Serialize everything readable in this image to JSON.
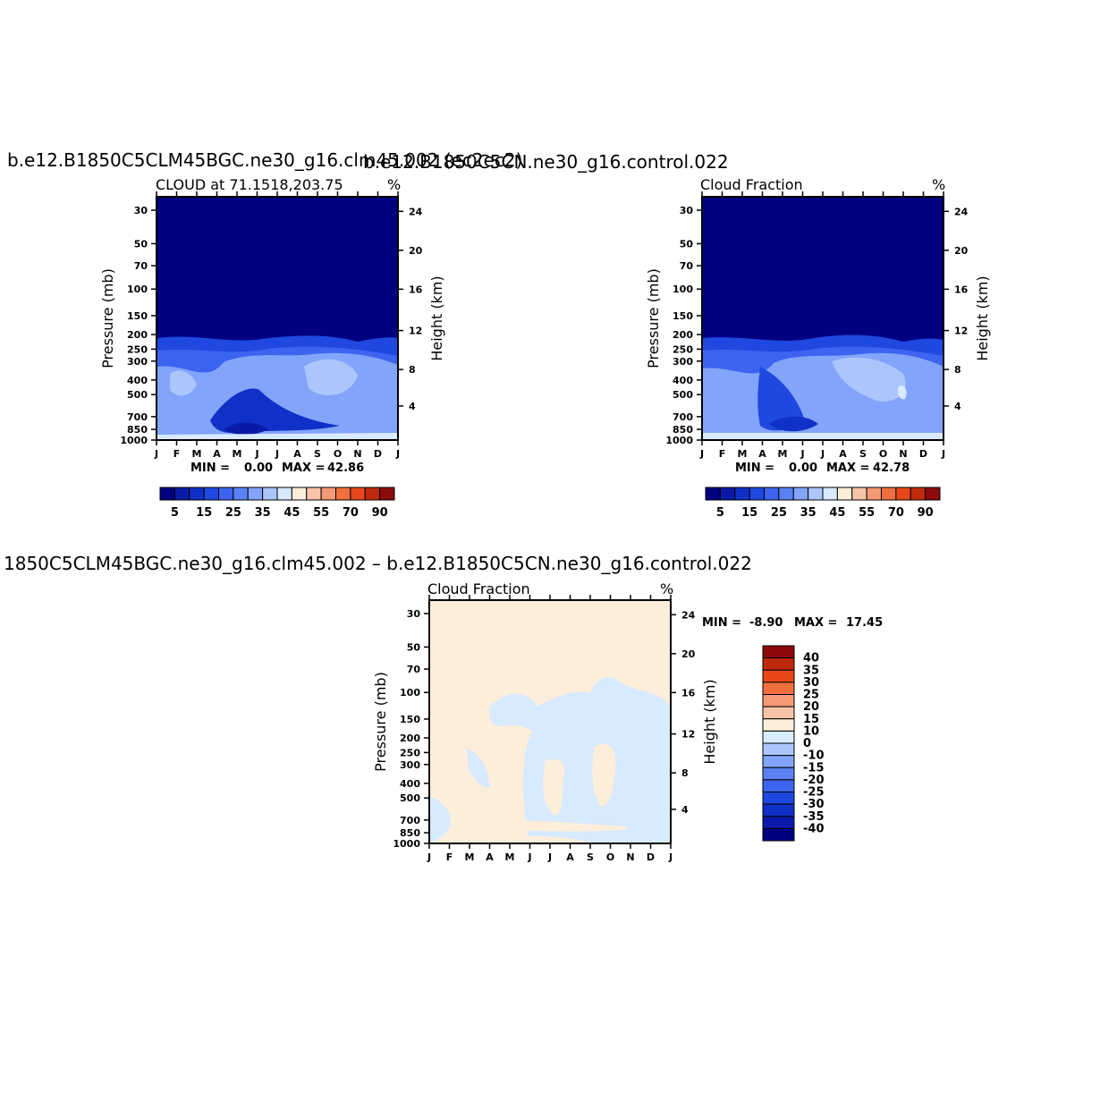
{
  "chart_data": [
    {
      "type": "heatmap",
      "title": "b.e12.B1850C5CLM45BGC.ne30_g16.clm45.002 (ec2ec2)",
      "subtitle": "CLOUD at 71.1518,203.75",
      "units": "%",
      "xlabel": "",
      "ylabel": "Pressure (mb)",
      "ylabel_right": "Height (km)",
      "x_ticks": [
        "J",
        "F",
        "M",
        "A",
        "M",
        "J",
        "J",
        "A",
        "S",
        "O",
        "N",
        "D",
        "J"
      ],
      "y_ticks": [
        "30",
        "50",
        "70",
        "100",
        "150",
        "200",
        "250",
        "300",
        "400",
        "500",
        "700",
        "850",
        "1000"
      ],
      "y_ticks_right": [
        "24",
        "20",
        "16",
        "12",
        "8",
        "4"
      ],
      "min_label": "MIN =",
      "min_value": "0.00",
      "max_label": "MAX =",
      "max_value": "42.86",
      "min": 0.0,
      "max": 42.86,
      "colorbar_labels": [
        "5",
        "15",
        "25",
        "35",
        "45",
        "55",
        "70",
        "90"
      ]
    },
    {
      "type": "heatmap",
      "title": "b.e12.B1850C5CN.ne30_g16.control.022",
      "subtitle": "Cloud Fraction",
      "units": "%",
      "xlabel": "",
      "ylabel": "Pressure (mb)",
      "ylabel_right": "Height (km)",
      "x_ticks": [
        "J",
        "F",
        "M",
        "A",
        "M",
        "J",
        "J",
        "A",
        "S",
        "O",
        "N",
        "D",
        "J"
      ],
      "y_ticks": [
        "30",
        "50",
        "70",
        "100",
        "150",
        "200",
        "250",
        "300",
        "400",
        "500",
        "700",
        "850",
        "1000"
      ],
      "y_ticks_right": [
        "24",
        "20",
        "16",
        "12",
        "8",
        "4"
      ],
      "min_label": "MIN =",
      "min_value": "0.00",
      "max_label": "MAX =",
      "max_value": "42.78",
      "min": 0.0,
      "max": 42.78,
      "colorbar_labels": [
        "5",
        "15",
        "25",
        "35",
        "45",
        "55",
        "70",
        "90"
      ]
    },
    {
      "type": "heatmap",
      "title": "1850C5CLM45BGC.ne30_g16.clm45.002 – b.e12.B1850C5CN.ne30_g16.control.022",
      "subtitle": "Cloud Fraction",
      "units": "%",
      "xlabel": "",
      "ylabel": "Pressure (mb)",
      "ylabel_right": "Height (km)",
      "x_ticks": [
        "J",
        "F",
        "M",
        "A",
        "M",
        "J",
        "J",
        "A",
        "S",
        "O",
        "N",
        "D",
        "J"
      ],
      "y_ticks": [
        "30",
        "50",
        "70",
        "100",
        "150",
        "200",
        "250",
        "300",
        "400",
        "500",
        "700",
        "850",
        "1000"
      ],
      "y_ticks_right": [
        "24",
        "20",
        "16",
        "12",
        "8",
        "4"
      ],
      "min_label": "MIN =",
      "min_value": "-8.90",
      "max_label": "MAX =",
      "max_value": "17.45",
      "min": -8.9,
      "max": 17.45,
      "colorbar_labels": [
        "40",
        "35",
        "30",
        "25",
        "20",
        "15",
        "10",
        "0",
        "-10",
        "-15",
        "-20",
        "-25",
        "-30",
        "-35",
        "-40"
      ]
    }
  ],
  "colors": {
    "scale_abs": [
      "#000080",
      "#0a1aa8",
      "#1030c8",
      "#1e48e0",
      "#3c64f0",
      "#5a82f5",
      "#82a4fa",
      "#acc6fc",
      "#d8eafd",
      "#fdeedb",
      "#f8c4a8",
      "#f59a74",
      "#f2703e",
      "#e8481a",
      "#c02a0c",
      "#8c0a0a"
    ],
    "scale_diff": [
      "#000080",
      "#0a1aa8",
      "#1030c8",
      "#1e48e0",
      "#3c64f0",
      "#5a82f5",
      "#82a4fa",
      "#acc6fc",
      "#d8eafd",
      "#fdeedb",
      "#f8c4a8",
      "#f59a74",
      "#f2703e",
      "#e8481a",
      "#c02a0c",
      "#8c0a0a"
    ]
  }
}
